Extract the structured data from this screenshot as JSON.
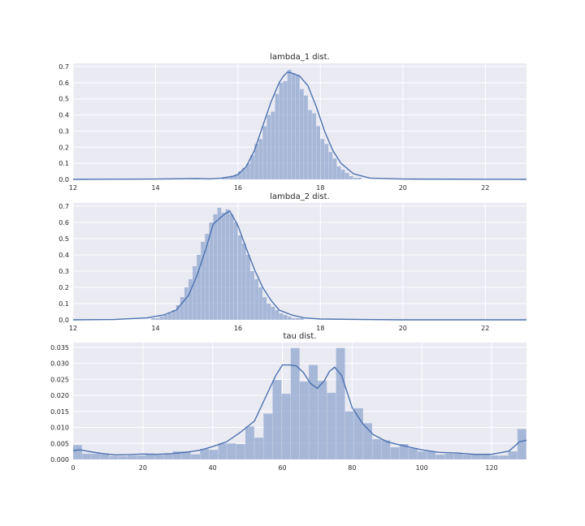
{
  "chart_data": [
    {
      "type": "bar",
      "subtype": "histogram-with-kde",
      "title": "lambda_1 dist.",
      "xlabel": "",
      "ylabel": "",
      "xlim": [
        12,
        23
      ],
      "ylim": [
        0,
        0.72
      ],
      "xticks": [
        12,
        14,
        16,
        18,
        20,
        22
      ],
      "yticks": [
        0.0,
        0.1,
        0.2,
        0.3,
        0.4,
        0.5,
        0.6,
        0.7
      ],
      "ytick_labels": [
        "0.0",
        "0.1",
        "0.2",
        "0.3",
        "0.4",
        "0.5",
        "0.6",
        "0.7"
      ],
      "grid": true,
      "color": "#4c72b0",
      "histogram": {
        "bin_edges": [
          15.6,
          15.7,
          15.8,
          15.9,
          16.0,
          16.1,
          16.2,
          16.3,
          16.4,
          16.5,
          16.6,
          16.7,
          16.8,
          16.9,
          17.0,
          17.1,
          17.2,
          17.3,
          17.4,
          17.5,
          17.6,
          17.7,
          17.8,
          17.9,
          18.0,
          18.1,
          18.2,
          18.3,
          18.4,
          18.5,
          18.6,
          18.7,
          18.8,
          18.9,
          19.0
        ],
        "values": [
          0.01,
          0.01,
          0.02,
          0.03,
          0.05,
          0.07,
          0.1,
          0.15,
          0.22,
          0.25,
          0.33,
          0.4,
          0.42,
          0.53,
          0.6,
          0.61,
          0.68,
          0.66,
          0.65,
          0.56,
          0.52,
          0.43,
          0.41,
          0.33,
          0.25,
          0.22,
          0.17,
          0.13,
          0.08,
          0.06,
          0.04,
          0.02,
          0.01,
          0.01
        ]
      },
      "kde": {
        "x": [
          12,
          14,
          15,
          15.3,
          15.6,
          15.9,
          16.0,
          16.2,
          16.4,
          16.6,
          16.8,
          17.0,
          17.1,
          17.2,
          17.3,
          17.5,
          17.7,
          17.9,
          18.1,
          18.3,
          18.5,
          18.8,
          19.2,
          20,
          23
        ],
        "y": [
          0.0,
          0.002,
          0.005,
          0.003,
          0.008,
          0.02,
          0.03,
          0.08,
          0.18,
          0.33,
          0.48,
          0.6,
          0.64,
          0.665,
          0.66,
          0.64,
          0.58,
          0.45,
          0.3,
          0.18,
          0.1,
          0.035,
          0.008,
          0.002,
          0.0
        ]
      }
    },
    {
      "type": "bar",
      "subtype": "histogram-with-kde",
      "title": "lambda_2 dist.",
      "xlabel": "",
      "ylabel": "",
      "xlim": [
        12,
        23
      ],
      "ylim": [
        0,
        0.72
      ],
      "xticks": [
        12,
        14,
        16,
        18,
        20,
        22
      ],
      "yticks": [
        0.0,
        0.1,
        0.2,
        0.3,
        0.4,
        0.5,
        0.6,
        0.7
      ],
      "ytick_labels": [
        "0.0",
        "0.1",
        "0.2",
        "0.3",
        "0.4",
        "0.5",
        "0.6",
        "0.7"
      ],
      "grid": true,
      "color": "#4c72b0",
      "histogram": {
        "bin_edges": [
          13.9,
          14.0,
          14.1,
          14.2,
          14.3,
          14.4,
          14.5,
          14.6,
          14.7,
          14.8,
          14.9,
          15.0,
          15.1,
          15.2,
          15.3,
          15.4,
          15.5,
          15.6,
          15.7,
          15.8,
          15.9,
          16.0,
          16.1,
          16.2,
          16.3,
          16.4,
          16.5,
          16.6,
          16.7,
          16.8,
          16.9,
          17.0,
          17.1,
          17.2,
          17.3,
          17.4,
          17.5,
          17.6
        ],
        "values": [
          0.01,
          0.01,
          0.02,
          0.03,
          0.04,
          0.06,
          0.09,
          0.14,
          0.2,
          0.25,
          0.33,
          0.4,
          0.48,
          0.53,
          0.6,
          0.65,
          0.69,
          0.66,
          0.68,
          0.65,
          0.6,
          0.52,
          0.47,
          0.4,
          0.3,
          0.25,
          0.2,
          0.14,
          0.1,
          0.08,
          0.06,
          0.04,
          0.03,
          0.02,
          0.01,
          0.01,
          0.01
        ]
      },
      "kde": {
        "x": [
          12,
          13,
          13.8,
          14.2,
          14.5,
          14.8,
          15.0,
          15.2,
          15.4,
          15.6,
          15.7,
          15.8,
          16.0,
          16.2,
          16.4,
          16.6,
          16.8,
          17.0,
          17.3,
          17.6,
          18.0,
          19.0,
          20,
          23
        ],
        "y": [
          0.0,
          0.002,
          0.012,
          0.03,
          0.06,
          0.15,
          0.27,
          0.42,
          0.59,
          0.635,
          0.655,
          0.67,
          0.58,
          0.44,
          0.31,
          0.2,
          0.12,
          0.06,
          0.03,
          0.012,
          0.005,
          0.002,
          0.0,
          0.0
        ]
      }
    },
    {
      "type": "bar",
      "subtype": "histogram-with-kde",
      "title": "tau dist.",
      "xlabel": "",
      "ylabel": "",
      "xlim": [
        0,
        130
      ],
      "ylim": [
        0,
        0.0365
      ],
      "xticks": [
        0,
        20,
        40,
        60,
        80,
        100,
        120
      ],
      "yticks": [
        0.0,
        0.005,
        0.01,
        0.015,
        0.02,
        0.025,
        0.03,
        0.035
      ],
      "ytick_labels": [
        "0.000",
        "0.005",
        "0.010",
        "0.015",
        "0.020",
        "0.025",
        "0.030",
        "0.035"
      ],
      "grid": true,
      "color": "#4c72b0",
      "histogram": {
        "bin_edges": [
          0,
          2.6,
          5.2,
          7.8,
          10.4,
          13.0,
          15.6,
          18.2,
          20.8,
          23.4,
          26.0,
          28.6,
          31.2,
          33.8,
          36.4,
          39.0,
          41.6,
          44.2,
          46.8,
          49.4,
          52.0,
          54.6,
          57.2,
          59.8,
          62.4,
          65.0,
          67.6,
          70.2,
          72.8,
          75.4,
          78.0,
          80.6,
          83.2,
          85.8,
          88.4,
          91.0,
          93.6,
          96.2,
          98.8,
          101.4,
          104.0,
          106.6,
          109.2,
          111.8,
          114.4,
          117.0,
          119.6,
          122.2,
          124.8,
          127.4,
          130.0
        ],
        "values": [
          0.0045,
          0.0018,
          0.0018,
          0.0016,
          0.001,
          0.001,
          0.0012,
          0.0012,
          0.0016,
          0.0014,
          0.0016,
          0.0025,
          0.0025,
          0.0016,
          0.0033,
          0.003,
          0.005,
          0.005,
          0.0048,
          0.0103,
          0.0068,
          0.0143,
          0.0248,
          0.0205,
          0.0348,
          0.0243,
          0.0295,
          0.0245,
          0.0208,
          0.0348,
          0.015,
          0.016,
          0.0113,
          0.0063,
          0.006,
          0.0038,
          0.0048,
          0.0035,
          0.0025,
          0.0025,
          0.0015,
          0.0018,
          0.0018,
          0.0015,
          0.0015,
          0.0015,
          0.0012,
          0.0012,
          0.0025,
          0.0095
        ]
      },
      "kde": {
        "x": [
          0,
          2,
          5,
          8,
          12,
          16,
          20,
          24,
          28,
          32,
          36,
          40,
          44,
          48,
          52,
          55,
          58,
          60,
          62,
          64,
          66,
          68,
          70,
          72,
          73.5,
          75,
          77,
          80,
          83,
          86,
          90,
          95,
          100,
          105,
          110,
          115,
          120,
          125,
          128,
          130
        ],
        "y": [
          0.0028,
          0.003,
          0.0024,
          0.0019,
          0.0014,
          0.0015,
          0.0017,
          0.0016,
          0.0018,
          0.0022,
          0.0028,
          0.004,
          0.0055,
          0.0085,
          0.012,
          0.019,
          0.026,
          0.0295,
          0.0295,
          0.0292,
          0.0272,
          0.0238,
          0.0222,
          0.0245,
          0.0275,
          0.0288,
          0.0262,
          0.0162,
          0.0112,
          0.0078,
          0.0055,
          0.0042,
          0.003,
          0.0022,
          0.002,
          0.0016,
          0.0016,
          0.0026,
          0.0055,
          0.006
        ]
      }
    }
  ]
}
